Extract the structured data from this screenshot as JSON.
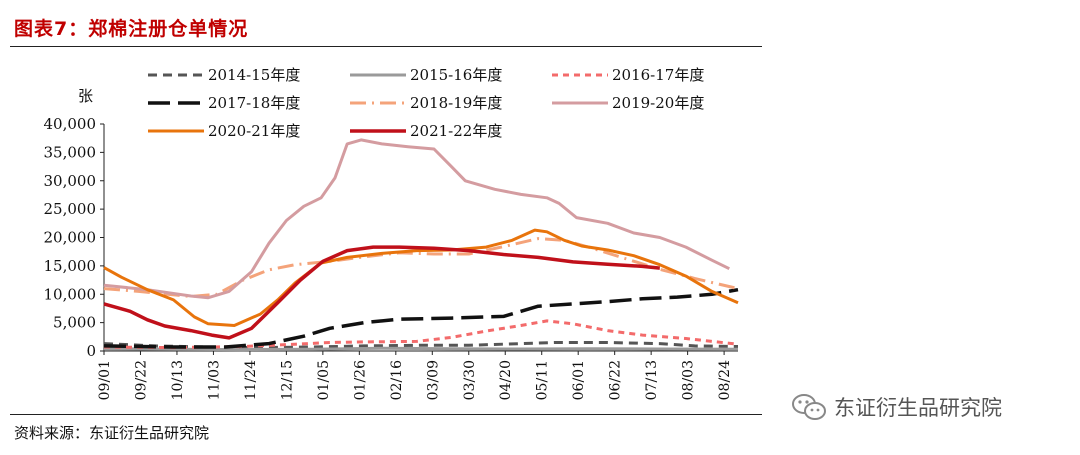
{
  "header": {
    "title": "图表7：郑棉注册仓单情况"
  },
  "footer": {
    "source": "资料来源：东证衍生品研究院",
    "watermark": "东证衍生品研究院"
  },
  "colors": {
    "s1415": "#555555",
    "s1516": "#9a9a9a",
    "s1617": "#f36b6b",
    "s1718": "#111111",
    "s1819": "#f4a37a",
    "s1920": "#d49ca0",
    "s2021": "#e8740c",
    "s2122": "#c0101a"
  },
  "chart_data": {
    "type": "line",
    "title": "郑棉注册仓单情况",
    "ylabel": "张",
    "ylim": [
      0,
      40000
    ],
    "yticks": [
      0,
      5000,
      10000,
      15000,
      20000,
      25000,
      30000,
      35000,
      40000
    ],
    "ytick_labels": [
      "0",
      "5,000",
      "10,000",
      "15,000",
      "20,000",
      "25,000",
      "30,000",
      "35,000",
      "40,000"
    ],
    "xlim": [
      0,
      365
    ],
    "x_ticks": [
      {
        "label": "09/01",
        "day": 0
      },
      {
        "label": "09/22",
        "day": 21
      },
      {
        "label": "10/13",
        "day": 42
      },
      {
        "label": "11/03",
        "day": 63
      },
      {
        "label": "11/24",
        "day": 84
      },
      {
        "label": "12/15",
        "day": 105
      },
      {
        "label": "01/05",
        "day": 126
      },
      {
        "label": "01/26",
        "day": 147
      },
      {
        "label": "02/16",
        "day": 168
      },
      {
        "label": "03/09",
        "day": 189
      },
      {
        "label": "03/30",
        "day": 210
      },
      {
        "label": "04/20",
        "day": 231
      },
      {
        "label": "05/11",
        "day": 252
      },
      {
        "label": "06/01",
        "day": 273
      },
      {
        "label": "06/22",
        "day": 294
      },
      {
        "label": "07/13",
        "day": 315
      },
      {
        "label": "08/03",
        "day": 336
      },
      {
        "label": "08/24",
        "day": 357
      }
    ],
    "series": [
      {
        "name": "2014-15年度",
        "color_key": "s1415",
        "dash": "9,6",
        "width": 3,
        "points": [
          [
            0,
            1300
          ],
          [
            30,
            900
          ],
          [
            60,
            700
          ],
          [
            90,
            600
          ],
          [
            120,
            700
          ],
          [
            150,
            900
          ],
          [
            180,
            1000
          ],
          [
            210,
            1000
          ],
          [
            240,
            1300
          ],
          [
            260,
            1500
          ],
          [
            290,
            1500
          ],
          [
            320,
            1300
          ],
          [
            340,
            900
          ],
          [
            365,
            800
          ]
        ]
      },
      {
        "name": "2015-16年度",
        "color_key": "s1516",
        "dash": "",
        "width": 3,
        "points": [
          [
            0,
            400
          ],
          [
            40,
            300
          ],
          [
            80,
            250
          ],
          [
            120,
            300
          ],
          [
            160,
            500
          ],
          [
            200,
            400
          ],
          [
            240,
            350
          ],
          [
            280,
            400
          ],
          [
            320,
            350
          ],
          [
            365,
            300
          ]
        ]
      },
      {
        "name": "2016-17年度",
        "color_key": "s1617",
        "dash": "6,5",
        "width": 3,
        "points": [
          [
            0,
            700
          ],
          [
            40,
            600
          ],
          [
            80,
            800
          ],
          [
            110,
            1200
          ],
          [
            130,
            1500
          ],
          [
            150,
            1600
          ],
          [
            180,
            1700
          ],
          [
            200,
            2400
          ],
          [
            220,
            3500
          ],
          [
            240,
            4500
          ],
          [
            255,
            5300
          ],
          [
            270,
            4800
          ],
          [
            290,
            3600
          ],
          [
            310,
            2800
          ],
          [
            335,
            2200
          ],
          [
            350,
            1700
          ],
          [
            365,
            1200
          ]
        ]
      },
      {
        "name": "2017-18年度",
        "color_key": "s1718",
        "dash": "22,8",
        "width": 3.5,
        "points": [
          [
            0,
            900
          ],
          [
            40,
            700
          ],
          [
            70,
            700
          ],
          [
            95,
            1300
          ],
          [
            115,
            2600
          ],
          [
            130,
            4000
          ],
          [
            150,
            5000
          ],
          [
            170,
            5600
          ],
          [
            200,
            5800
          ],
          [
            230,
            6100
          ],
          [
            250,
            7900
          ],
          [
            270,
            8300
          ],
          [
            290,
            8700
          ],
          [
            310,
            9200
          ],
          [
            330,
            9500
          ],
          [
            350,
            10000
          ],
          [
            365,
            10800
          ]
        ]
      },
      {
        "name": "2018-19年度",
        "color_key": "s1819",
        "dash": "16,6,2,6",
        "width": 3,
        "points": [
          [
            0,
            11000
          ],
          [
            20,
            10500
          ],
          [
            50,
            9600
          ],
          [
            65,
            10000
          ],
          [
            80,
            12500
          ],
          [
            95,
            14300
          ],
          [
            110,
            15200
          ],
          [
            130,
            15800
          ],
          [
            150,
            16600
          ],
          [
            170,
            17300
          ],
          [
            190,
            17100
          ],
          [
            210,
            17100
          ],
          [
            230,
            18400
          ],
          [
            250,
            19800
          ],
          [
            265,
            19500
          ],
          [
            280,
            18200
          ],
          [
            300,
            16300
          ],
          [
            320,
            14400
          ],
          [
            340,
            12800
          ],
          [
            365,
            11000
          ]
        ]
      },
      {
        "name": "2019-20年度",
        "color_key": "s1920",
        "dash": "",
        "width": 3,
        "points": [
          [
            0,
            11600
          ],
          [
            25,
            10800
          ],
          [
            50,
            9700
          ],
          [
            60,
            9400
          ],
          [
            72,
            10500
          ],
          [
            85,
            14000
          ],
          [
            95,
            19000
          ],
          [
            105,
            23000
          ],
          [
            115,
            25500
          ],
          [
            125,
            27000
          ],
          [
            133,
            30500
          ],
          [
            140,
            36500
          ],
          [
            148,
            37200
          ],
          [
            160,
            36500
          ],
          [
            175,
            36000
          ],
          [
            190,
            35600
          ],
          [
            200,
            32500
          ],
          [
            208,
            30000
          ],
          [
            225,
            28500
          ],
          [
            240,
            27600
          ],
          [
            255,
            27000
          ],
          [
            262,
            26000
          ],
          [
            272,
            23500
          ],
          [
            290,
            22500
          ],
          [
            305,
            20800
          ],
          [
            320,
            20000
          ],
          [
            335,
            18300
          ],
          [
            350,
            16000
          ],
          [
            360,
            14500
          ]
        ]
      },
      {
        "name": "2020-21年度",
        "color_key": "s2021",
        "dash": "",
        "width": 3,
        "points": [
          [
            0,
            14700
          ],
          [
            10,
            13000
          ],
          [
            25,
            10800
          ],
          [
            40,
            9000
          ],
          [
            52,
            6000
          ],
          [
            60,
            4800
          ],
          [
            75,
            4500
          ],
          [
            90,
            6500
          ],
          [
            100,
            9000
          ],
          [
            110,
            12000
          ],
          [
            125,
            15500
          ],
          [
            140,
            16500
          ],
          [
            160,
            17200
          ],
          [
            180,
            17700
          ],
          [
            200,
            17800
          ],
          [
            220,
            18300
          ],
          [
            235,
            19500
          ],
          [
            248,
            21300
          ],
          [
            255,
            21000
          ],
          [
            265,
            19500
          ],
          [
            275,
            18500
          ],
          [
            290,
            17800
          ],
          [
            305,
            16800
          ],
          [
            320,
            15200
          ],
          [
            335,
            13200
          ],
          [
            350,
            10500
          ],
          [
            365,
            8500
          ]
        ]
      },
      {
        "name": "2021-22年度",
        "color_key": "s2122",
        "dash": "",
        "width": 3.5,
        "points": [
          [
            0,
            8300
          ],
          [
            15,
            7000
          ],
          [
            25,
            5500
          ],
          [
            35,
            4400
          ],
          [
            50,
            3600
          ],
          [
            62,
            2800
          ],
          [
            72,
            2300
          ],
          [
            85,
            4000
          ],
          [
            100,
            8500
          ],
          [
            113,
            12500
          ],
          [
            126,
            15800
          ],
          [
            140,
            17700
          ],
          [
            155,
            18300
          ],
          [
            170,
            18300
          ],
          [
            190,
            18100
          ],
          [
            210,
            17700
          ],
          [
            230,
            17000
          ],
          [
            250,
            16500
          ],
          [
            270,
            15700
          ],
          [
            290,
            15300
          ],
          [
            310,
            14900
          ],
          [
            320,
            14600
          ]
        ]
      }
    ]
  }
}
